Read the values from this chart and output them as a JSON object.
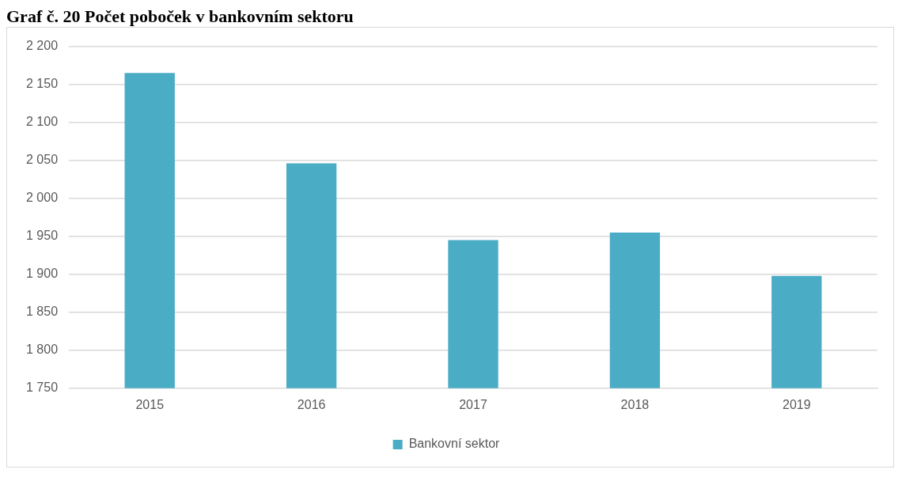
{
  "chart_data": {
    "type": "bar",
    "title": "Graf č. 20 Počet poboček v bankovním sektoru",
    "categories": [
      "2015",
      "2016",
      "2017",
      "2018",
      "2019"
    ],
    "series": [
      {
        "name": "Bankovní sektor",
        "color": "#4bacc6",
        "values": [
          2165,
          2046,
          1945,
          1955,
          1898
        ]
      }
    ],
    "ylim": [
      1750,
      2200
    ],
    "yticks": [
      {
        "value": 1750,
        "label": "1 750"
      },
      {
        "value": 1800,
        "label": "1 800"
      },
      {
        "value": 1850,
        "label": "1 850"
      },
      {
        "value": 1900,
        "label": "1 900"
      },
      {
        "value": 1950,
        "label": "1 950"
      },
      {
        "value": 2000,
        "label": "2 000"
      },
      {
        "value": 2050,
        "label": "2 050"
      },
      {
        "value": 2100,
        "label": "2 100"
      },
      {
        "value": 2150,
        "label": "2 150"
      },
      {
        "value": 2200,
        "label": "2 200"
      }
    ],
    "grid": "y",
    "legend": "bottom"
  }
}
